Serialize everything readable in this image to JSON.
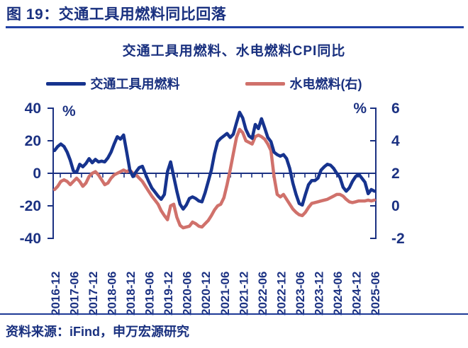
{
  "header": {
    "title": "图 19：交通工具用燃料同比回落"
  },
  "footer": {
    "source": "资料来源：iFind，申万宏源研究"
  },
  "colors": {
    "navy_text": "#19307f",
    "axis": "#1b3182",
    "vehicle_fuel_line": "#16338e",
    "utility_fuel_line": "#d0716b",
    "underline": "#2141a5"
  },
  "chart_data": {
    "type": "line",
    "title": "交通工具用燃料、水电燃料CPI同比",
    "x_frequency": "monthly",
    "x_start": "2016-12",
    "x_end": "2025-06",
    "x_tick_labels": [
      "2016-12",
      "2017-06",
      "2017-12",
      "2018-06",
      "2018-12",
      "2019-06",
      "2019-12",
      "2020-06",
      "2020-12",
      "2021-06",
      "2021-12",
      "2022-06",
      "2022-12",
      "2023-06",
      "2023-12",
      "2024-06",
      "2024-12",
      "2025-06"
    ],
    "left_axis": {
      "unit": "%",
      "ticks": [
        40,
        20,
        0,
        -20,
        -40
      ],
      "range": [
        -40,
        40
      ]
    },
    "right_axis": {
      "unit": "%",
      "ticks": [
        6,
        4,
        2,
        0,
        -2
      ],
      "range": [
        -2,
        6
      ]
    },
    "legend_position": "top",
    "grid": false,
    "series": [
      {
        "id": "vehicle-fuel",
        "name": "交通工具用燃料",
        "axis": "left",
        "color": "#16338e",
        "values": [
          14,
          16.5,
          18,
          16.5,
          13,
          8,
          1.5,
          0.5,
          5.5,
          4,
          6,
          9,
          6.5,
          8.5,
          7,
          7.5,
          7,
          9.5,
          13,
          18,
          22.5,
          21,
          23.5,
          13,
          2,
          -2,
          1,
          3.5,
          4.3,
          -0.5,
          -5,
          -9,
          -11.5,
          -14,
          -16,
          -13,
          1,
          7,
          -2,
          -11,
          -19,
          -22,
          -19.5,
          -15.5,
          -14.5,
          -15.5,
          -17,
          -17.5,
          -12,
          -5,
          2,
          12,
          19.5,
          21.5,
          23,
          24.5,
          22,
          24,
          31,
          37.5,
          34,
          27,
          23,
          21.5,
          30,
          27.5,
          33.5,
          28,
          22,
          19.5,
          13,
          11.5,
          10.5,
          11.5,
          9,
          3,
          -6,
          -13,
          -18.5,
          -19.5,
          -13,
          -7,
          -4.5,
          -4.5,
          -3,
          2,
          4,
          5.5,
          5,
          3,
          0,
          -2.5,
          -8.5,
          -11,
          -9,
          -5,
          -2,
          -0.5,
          -3,
          -5.5,
          -12.5,
          -10,
          -11
        ]
      },
      {
        "id": "utility-fuel",
        "name": "水电燃料(右)",
        "axis": "right",
        "color": "#d0716b",
        "values": [
          1.0,
          1.2,
          1.5,
          1.6,
          1.5,
          1.3,
          1.5,
          1.7,
          1.5,
          1.2,
          1.4,
          1.8,
          2.0,
          2.1,
          1.9,
          1.6,
          1.3,
          1.4,
          1.7,
          1.9,
          2.0,
          2.1,
          2.2,
          2.1,
          2.2,
          2.0,
          1.9,
          1.7,
          1.5,
          1.2,
          0.9,
          0.6,
          0.35,
          0.1,
          -0.3,
          -0.6,
          -0.85,
          0.0,
          0.1,
          -0.7,
          -1.2,
          -1.35,
          -1.3,
          -1.25,
          -1.0,
          -1.1,
          -1.25,
          -1.3,
          -1.1,
          -0.9,
          -0.6,
          -0.25,
          0.0,
          0.1,
          0.5,
          1.3,
          2.2,
          3.2,
          4.2,
          4.7,
          4.5,
          4.0,
          3.9,
          3.8,
          4.25,
          4.35,
          4.25,
          4.1,
          3.8,
          3.4,
          1.8,
          0.7,
          0.55,
          0.7,
          0.4,
          0.1,
          -0.2,
          -0.4,
          -0.55,
          -0.6,
          -0.4,
          -0.1,
          0.15,
          0.2,
          0.25,
          0.3,
          0.35,
          0.4,
          0.5,
          0.6,
          0.7,
          0.7,
          0.6,
          0.4,
          0.25,
          0.2,
          0.25,
          0.3,
          0.3,
          0.3,
          0.35,
          0.3,
          0.35
        ]
      }
    ]
  }
}
